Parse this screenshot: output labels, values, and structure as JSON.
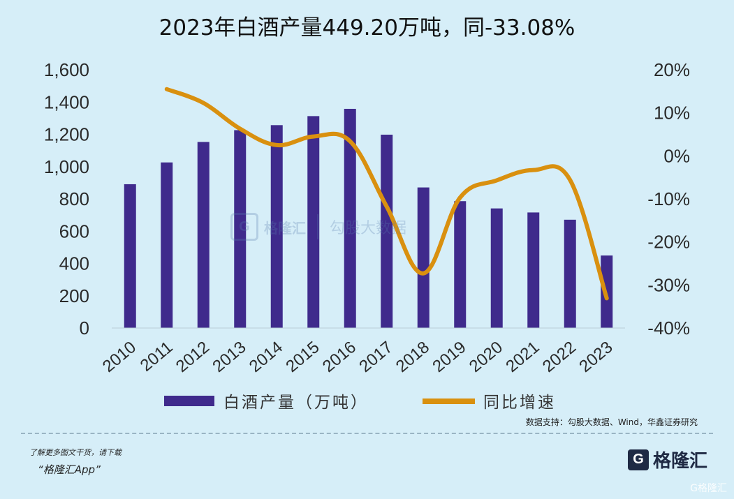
{
  "chart_data": {
    "type": "bar+line",
    "title": "2023年白酒产量449.20万吨，同-33.08%",
    "categories": [
      "2010",
      "2011",
      "2012",
      "2013",
      "2014",
      "2015",
      "2016",
      "2017",
      "2018",
      "2019",
      "2020",
      "2021",
      "2022",
      "2023"
    ],
    "series": [
      {
        "name": "白酒产量（万吨）",
        "type": "bar",
        "axis": "left",
        "color": "#3f2a8c",
        "values": [
          891,
          1026,
          1153,
          1226,
          1257,
          1313,
          1358,
          1198,
          871,
          786,
          741,
          716,
          671,
          449.2
        ]
      },
      {
        "name": "同比增速",
        "type": "line",
        "axis": "right",
        "color": "#d9900f",
        "values": [
          null,
          15.5,
          12.3,
          6.3,
          2.5,
          4.5,
          3.4,
          -11.8,
          -27.3,
          -9.7,
          -5.7,
          -3.3,
          -5.6,
          -33.08
        ]
      }
    ],
    "y_left": {
      "ticks": [
        "0",
        "200",
        "400",
        "600",
        "800",
        "1,000",
        "1,200",
        "1,400",
        "1,600"
      ],
      "min": 0,
      "max": 1600
    },
    "y_right": {
      "ticks": [
        "-40%",
        "-30%",
        "-20%",
        "-10%",
        "0%",
        "10%",
        "20%"
      ],
      "min": -40,
      "max": 20
    },
    "legend": "bottom",
    "grid": false
  },
  "source_note": "数据支持：勾股大数据、Wind，华鑫证券研究",
  "footer": {
    "promo_line1": "了解更多图文干货，请下载",
    "promo_line2": "“格隆汇App”",
    "brand_logo": "G",
    "brand_name": "格隆汇"
  },
  "watermark": {
    "logo": "G",
    "name": "格隆汇",
    "sub": "勾股大数据"
  },
  "corner_mark": "G格隆汇"
}
